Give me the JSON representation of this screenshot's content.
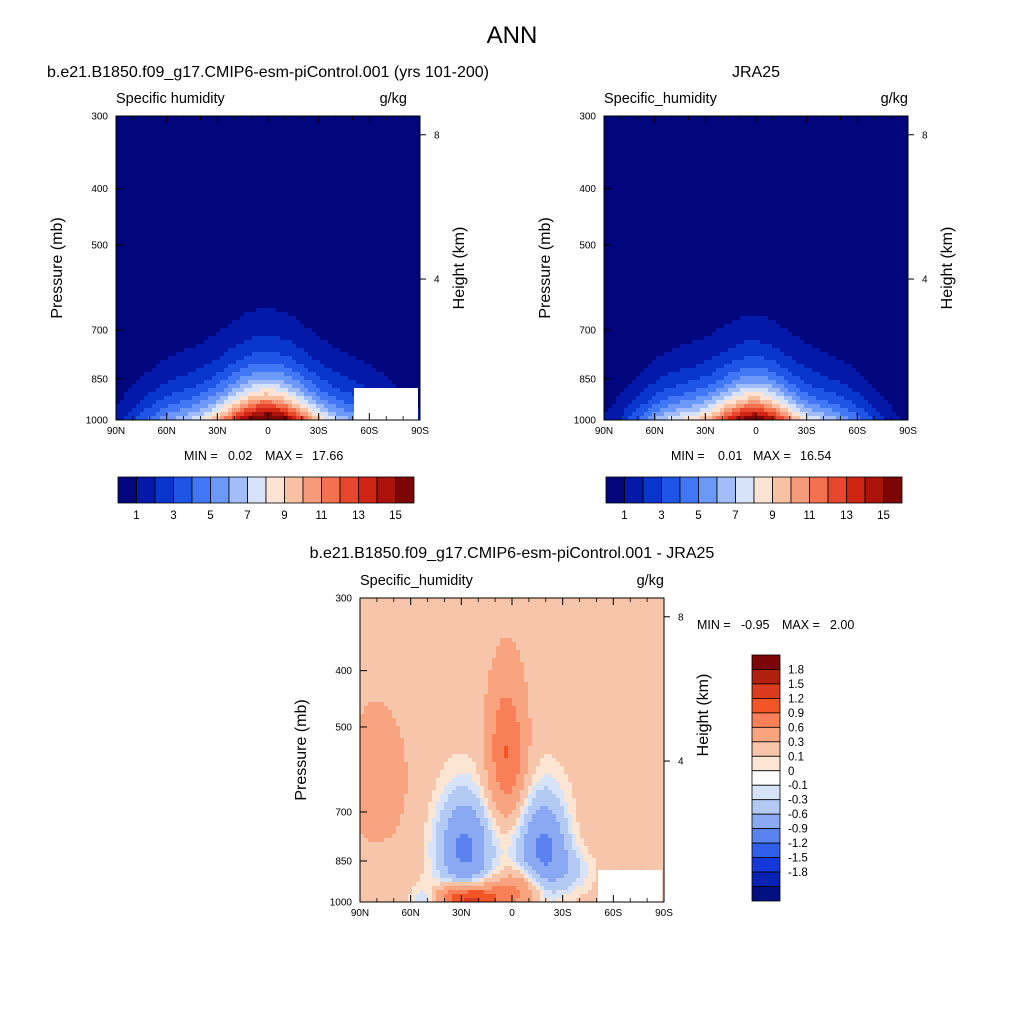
{
  "main_title": "ANN",
  "chart_data": [
    {
      "type": "heatmap",
      "title": "b.e21.B1850.f09_g17.CMIP6-esm-piControl.001 (yrs 101-200)",
      "left_label": "Specific humidity",
      "units": "g/kg",
      "ylabel": "Pressure (mb)",
      "ylabel_right": "Height (km)",
      "x_ticks": [
        "90N",
        "60N",
        "30N",
        "0",
        "30S",
        "60S",
        "90S"
      ],
      "y_ticks": [
        "300",
        "400",
        "500",
        "700",
        "850",
        "1000"
      ],
      "y_ticks_right": [
        "8",
        "4"
      ],
      "min_label": "MIN =",
      "min_value": "0.02",
      "max_label": "MAX =",
      "max_value": "17.66",
      "colorbar_labels": [
        "1",
        "3",
        "5",
        "7",
        "9",
        "11",
        "13",
        "15"
      ],
      "colorbar_colors": [
        "#02067d",
        "#0419aa",
        "#0836cc",
        "#1f55e6",
        "#4177f5",
        "#6c99f8",
        "#a2bdf7",
        "#d6e3f9",
        "#fce3d3",
        "#f9c1a4",
        "#f69b79",
        "#f2714f",
        "#e7472c",
        "#d02513",
        "#ab120a",
        "#7c0505"
      ],
      "peak_q": 17.66,
      "ridge_top_pressure": 380,
      "ridge_lat": 0,
      "missing_region": "Antarctic surface 60S-90S below 880 mb"
    },
    {
      "type": "heatmap",
      "title": "JRA25",
      "left_label": "Specific_humidity",
      "units": "g/kg",
      "ylabel": "Pressure (mb)",
      "ylabel_right": "Height (km)",
      "x_ticks": [
        "90N",
        "60N",
        "30N",
        "0",
        "30S",
        "60S",
        "90S"
      ],
      "y_ticks": [
        "300",
        "400",
        "500",
        "700",
        "850",
        "1000"
      ],
      "y_ticks_right": [
        "8",
        "4"
      ],
      "min_label": "MIN =",
      "min_value": "0.01",
      "max_label": "MAX =",
      "max_value": "16.54",
      "colorbar_labels": [
        "1",
        "3",
        "5",
        "7",
        "9",
        "11",
        "13",
        "15"
      ],
      "colorbar_colors": [
        "#02067d",
        "#0419aa",
        "#0836cc",
        "#1f55e6",
        "#4177f5",
        "#6c99f8",
        "#a2bdf7",
        "#d6e3f9",
        "#fce3d3",
        "#f9c1a4",
        "#f69b79",
        "#f2714f",
        "#e7472c",
        "#d02513",
        "#ab120a",
        "#7c0505"
      ],
      "peak_q": 16.54,
      "ridge_top_pressure": 400,
      "ridge_lat": 0
    },
    {
      "type": "heatmap",
      "title": "b.e21.B1850.f09_g17.CMIP6-esm-piControl.001 - JRA25",
      "left_label": "Specific_humidity",
      "units": "g/kg",
      "ylabel": "Pressure (mb)",
      "ylabel_right": "Height (km)",
      "x_ticks": [
        "90N",
        "60N",
        "30N",
        "0",
        "30S",
        "60S",
        "90S"
      ],
      "y_ticks": [
        "300",
        "400",
        "500",
        "700",
        "850",
        "1000"
      ],
      "y_ticks_right": [
        "8",
        "4"
      ],
      "min_label": "MIN =",
      "min_value": "-0.95",
      "max_label": "MAX =",
      "max_value": "2.00",
      "colorbar_labels": [
        "1.8",
        "1.5",
        "1.2",
        "0.9",
        "0.6",
        "0.3",
        "0.1",
        "0",
        "-0.1",
        "-0.3",
        "-0.6",
        "-0.9",
        "-1.2",
        "-1.5",
        "-1.8"
      ],
      "colorbar_colors": [
        "#7c0505",
        "#b0200f",
        "#dc3a1f",
        "#f25627",
        "#f87f57",
        "#f7a47f",
        "#f7c5a9",
        "#fde5d4",
        "#fdfdfd",
        "#d6e3f9",
        "#b3caf5",
        "#8aa9f2",
        "#5a83ef",
        "#2f5ee9",
        "#1438d9",
        "#0822b3",
        "#03107f"
      ],
      "missing_region": "Antarctic surface 60S-90S below 880 mb"
    }
  ]
}
